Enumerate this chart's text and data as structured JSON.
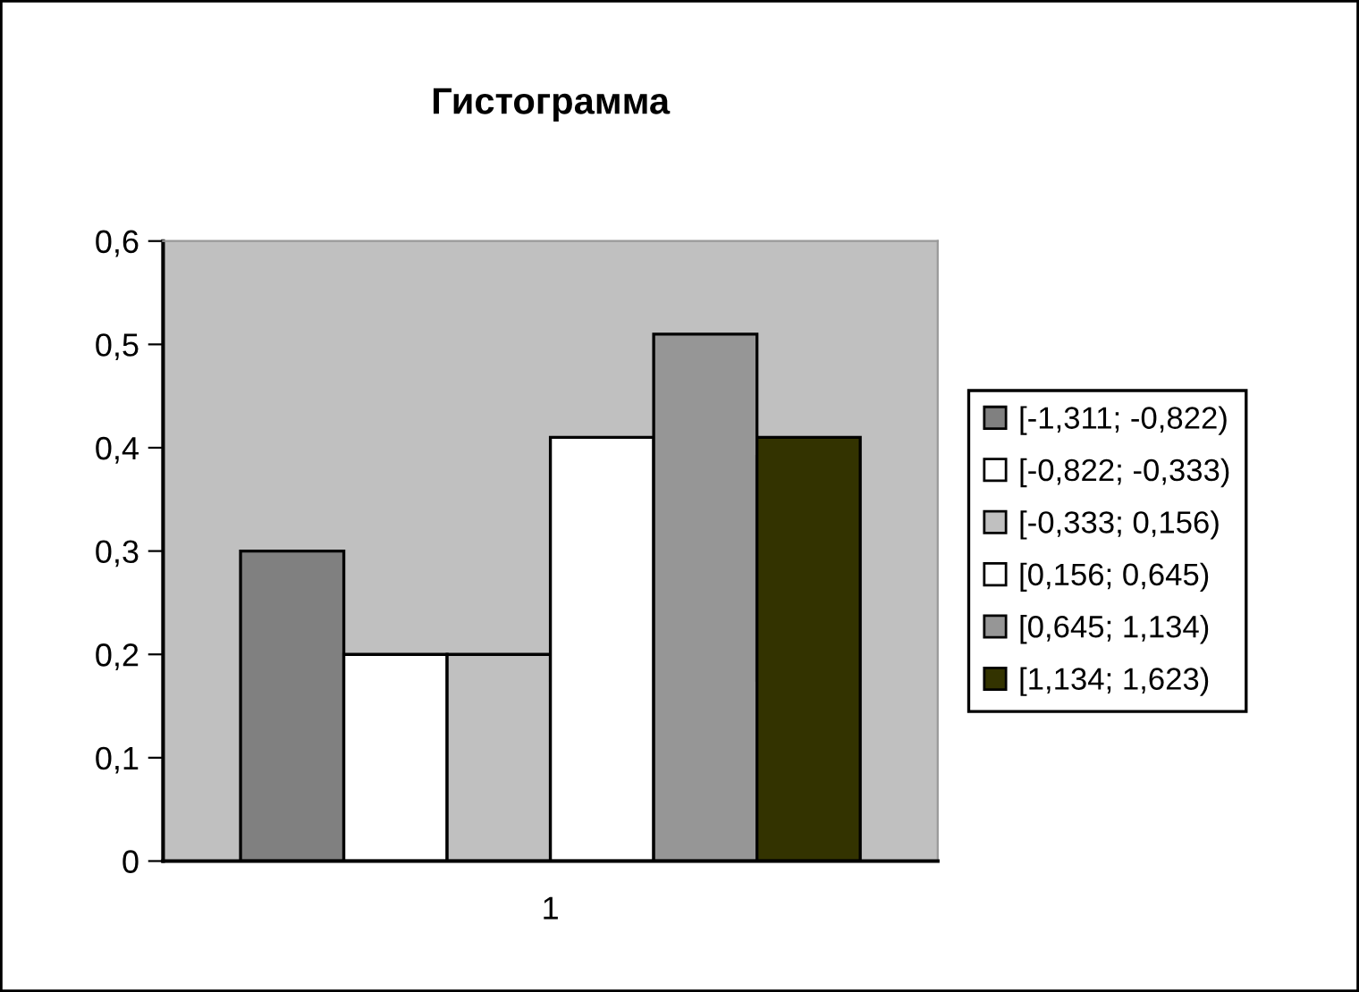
{
  "chart_data": {
    "type": "bar",
    "title": "Гистограмма",
    "categories": [
      "1"
    ],
    "series": [
      {
        "name": "[-1,311; -0,822)",
        "color": "#808080",
        "values": [
          0.3
        ]
      },
      {
        "name": "[-0,822; -0,333)",
        "color": "#ffffff",
        "values": [
          0.2
        ]
      },
      {
        "name": "[-0,333; 0,156)",
        "color": "#c0c0c0",
        "values": [
          0.2
        ]
      },
      {
        "name": "[0,156; 0,645)",
        "color": "#ffffff",
        "values": [
          0.41
        ]
      },
      {
        "name": "[0,645; 1,134)",
        "color": "#969696",
        "values": [
          0.51
        ]
      },
      {
        "name": "[1,134; 1,623)",
        "color": "#333300",
        "values": [
          0.41
        ]
      }
    ],
    "ylim": [
      0,
      0.6
    ],
    "yticks": [
      0,
      {
        "value": 0.1,
        "label": "0,1"
      },
      {
        "value": 0.2,
        "label": "0,2"
      },
      {
        "value": 0.3,
        "label": "0,3"
      },
      {
        "value": 0.4,
        "label": "0,4"
      },
      {
        "value": 0.5,
        "label": "0,5"
      },
      {
        "value": 0.6,
        "label": "0,6"
      }
    ],
    "grid": false,
    "legend": "right"
  }
}
